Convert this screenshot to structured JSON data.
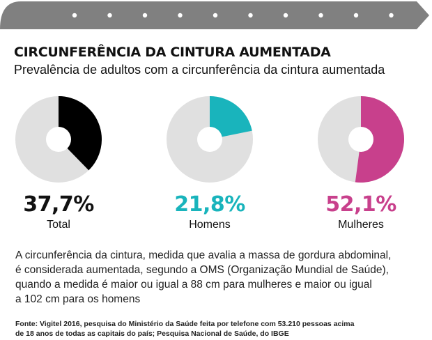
{
  "header": {
    "title": "CIRCUNFERÊNCIA DA CINTURA AUMENTADA",
    "subtitle": "Prevalência de adultos com a circunferência da cintura aumentada"
  },
  "chart_data": [
    {
      "type": "pie",
      "label": "Total",
      "value_label": "37,7%",
      "value": 37.7,
      "color": "#000000",
      "background": "#e0e0e0"
    },
    {
      "type": "pie",
      "label": "Homens",
      "value_label": "21,8%",
      "value": 21.8,
      "color": "#19b4bc",
      "background": "#e0e0e0"
    },
    {
      "type": "pie",
      "label": "Mulheres",
      "value_label": "52,1%",
      "value": 52.1,
      "color": "#c8408c",
      "background": "#e0e0e0"
    }
  ],
  "body": {
    "lines": [
      "A circunferência da cintura, medida que avalia a massa de gordura abdominal,",
      "é considerada aumentada, segundo a OMS (Organização Mundial de Saúde),",
      "quando a medida é maior ou igual a 88 cm para mulheres e maior ou igual",
      "a 102 cm para os homens"
    ]
  },
  "source": {
    "lines": [
      "Fonte: Vigitel 2016, pesquisa do Ministério da Saúde feita por telefone com 53.210 pessoas acima",
      "de 18 anos de todas as capitais do país; Pesquisa Nacional de Saúde, do IBGE"
    ]
  },
  "colors": {
    "banner": "#808080",
    "banner_dots": "#ffffff",
    "track": "#e0e0e0"
  }
}
